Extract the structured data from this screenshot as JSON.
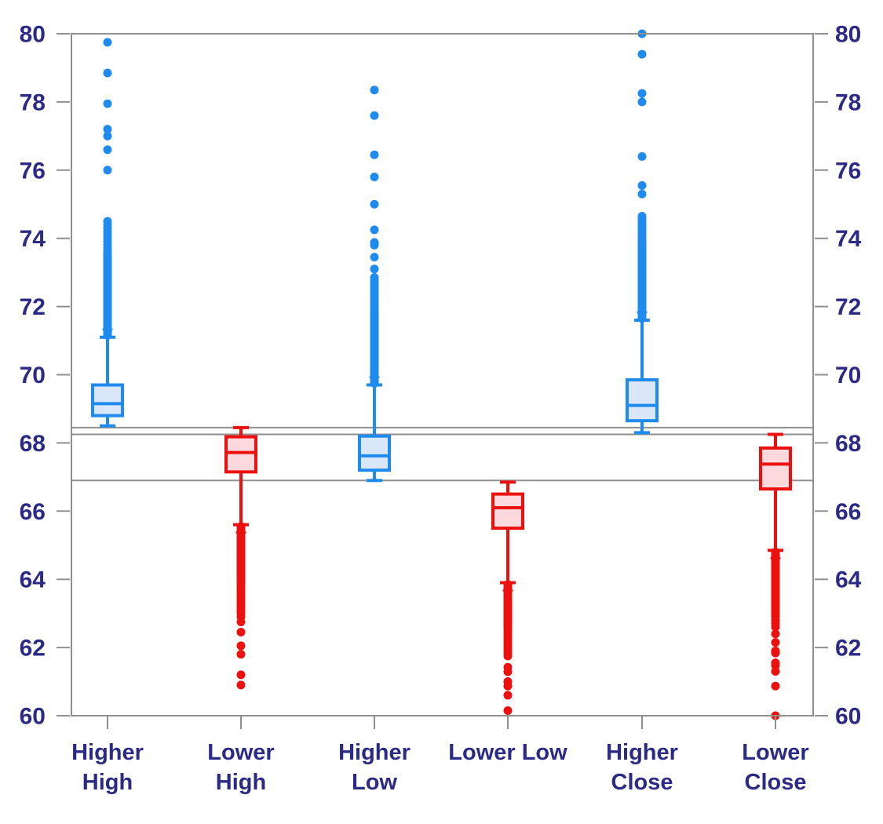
{
  "chart_data": {
    "type": "boxplot",
    "title": "",
    "xlabel": "",
    "ylabel": "",
    "grid": false,
    "legend": false,
    "y_axis": {
      "min": 60,
      "max": 80,
      "tick_step": 2,
      "ticks": [
        80,
        78,
        76,
        74,
        72,
        70,
        68,
        66,
        64,
        62,
        60
      ],
      "label_sides": [
        "left",
        "right"
      ]
    },
    "reference_lines": [
      {
        "value": 68.45
      },
      {
        "value": 68.25
      },
      {
        "value": 66.9
      }
    ],
    "colors": {
      "blue_stroke": "#1f8bee",
      "blue_fill": "#d9e7f8",
      "red_stroke": "#ec100e",
      "red_fill": "#fbd9dc",
      "axis_text": "#2b2a87",
      "axis_line": "#8f8f8f"
    },
    "categories": [
      {
        "label_lines": [
          "Higher",
          "High"
        ],
        "series": "blue",
        "stats": {
          "whisker_low": 68.5,
          "q1": 68.8,
          "median": 69.15,
          "q3": 69.7,
          "whisker_high": 71.1
        },
        "outlier_side": "high",
        "outlier_runs": [
          {
            "from": 71.15,
            "to": 73.6,
            "count": 60
          },
          {
            "from": 73.7,
            "to": 74.5,
            "count": 9
          }
        ],
        "outliers": [
          76.0,
          76.6,
          77.0,
          77.2,
          77.95,
          78.85,
          79.75
        ]
      },
      {
        "label_lines": [
          "Lower",
          "High"
        ],
        "series": "red",
        "stats": {
          "whisker_low": 65.6,
          "q1": 67.15,
          "median": 67.72,
          "q3": 68.18,
          "whisker_high": 68.45
        },
        "outlier_side": "low",
        "outlier_runs": [
          {
            "from": 63.9,
            "to": 65.55,
            "count": 45
          },
          {
            "from": 63.0,
            "to": 63.85,
            "count": 13
          }
        ],
        "outliers": [
          62.9,
          62.75,
          62.45,
          62.05,
          61.8,
          61.2,
          60.9
        ]
      },
      {
        "label_lines": [
          "Higher",
          "Low"
        ],
        "series": "blue",
        "stats": {
          "whisker_low": 66.9,
          "q1": 67.2,
          "median": 67.62,
          "q3": 68.2,
          "whisker_high": 69.7
        },
        "outlier_side": "high",
        "outlier_runs": [
          {
            "from": 69.75,
            "to": 71.9,
            "count": 55
          },
          {
            "from": 71.95,
            "to": 72.85,
            "count": 13
          }
        ],
        "outliers": [
          73.1,
          73.45,
          73.8,
          73.88,
          74.25,
          75.0,
          75.8,
          76.45,
          77.6,
          78.35
        ]
      },
      {
        "label_lines": [
          "Lower Low"
        ],
        "series": "red",
        "stats": {
          "whisker_low": 63.9,
          "q1": 65.5,
          "median": 66.1,
          "q3": 66.5,
          "whisker_high": 66.85
        },
        "outlier_side": "low",
        "outlier_runs": [
          {
            "from": 62.6,
            "to": 63.85,
            "count": 40
          },
          {
            "from": 61.75,
            "to": 62.55,
            "count": 11
          }
        ],
        "outliers": [
          61.42,
          61.29,
          61.0,
          60.87,
          60.6,
          60.15
        ]
      },
      {
        "label_lines": [
          "Higher",
          "Close"
        ],
        "series": "blue",
        "stats": {
          "whisker_low": 68.3,
          "q1": 68.65,
          "median": 69.1,
          "q3": 69.85,
          "whisker_high": 71.6
        },
        "outlier_side": "high",
        "outlier_runs": [
          {
            "from": 71.65,
            "to": 73.9,
            "count": 55
          },
          {
            "from": 73.95,
            "to": 74.65,
            "count": 10
          }
        ],
        "outliers": [
          75.3,
          75.55,
          76.4,
          78.0,
          78.25,
          79.4,
          80.0
        ]
      },
      {
        "label_lines": [
          "Lower",
          "Close"
        ],
        "series": "red",
        "stats": {
          "whisker_low": 64.85,
          "q1": 66.65,
          "median": 67.38,
          "q3": 67.85,
          "whisker_high": 68.25
        },
        "outlier_side": "low",
        "outlier_runs": [
          {
            "from": 62.95,
            "to": 64.8,
            "count": 45
          },
          {
            "from": 62.6,
            "to": 62.9,
            "count": 4
          }
        ],
        "outliers": [
          62.4,
          62.15,
          61.9,
          61.84,
          61.55,
          61.47,
          61.3,
          60.87,
          60.0
        ]
      }
    ]
  }
}
